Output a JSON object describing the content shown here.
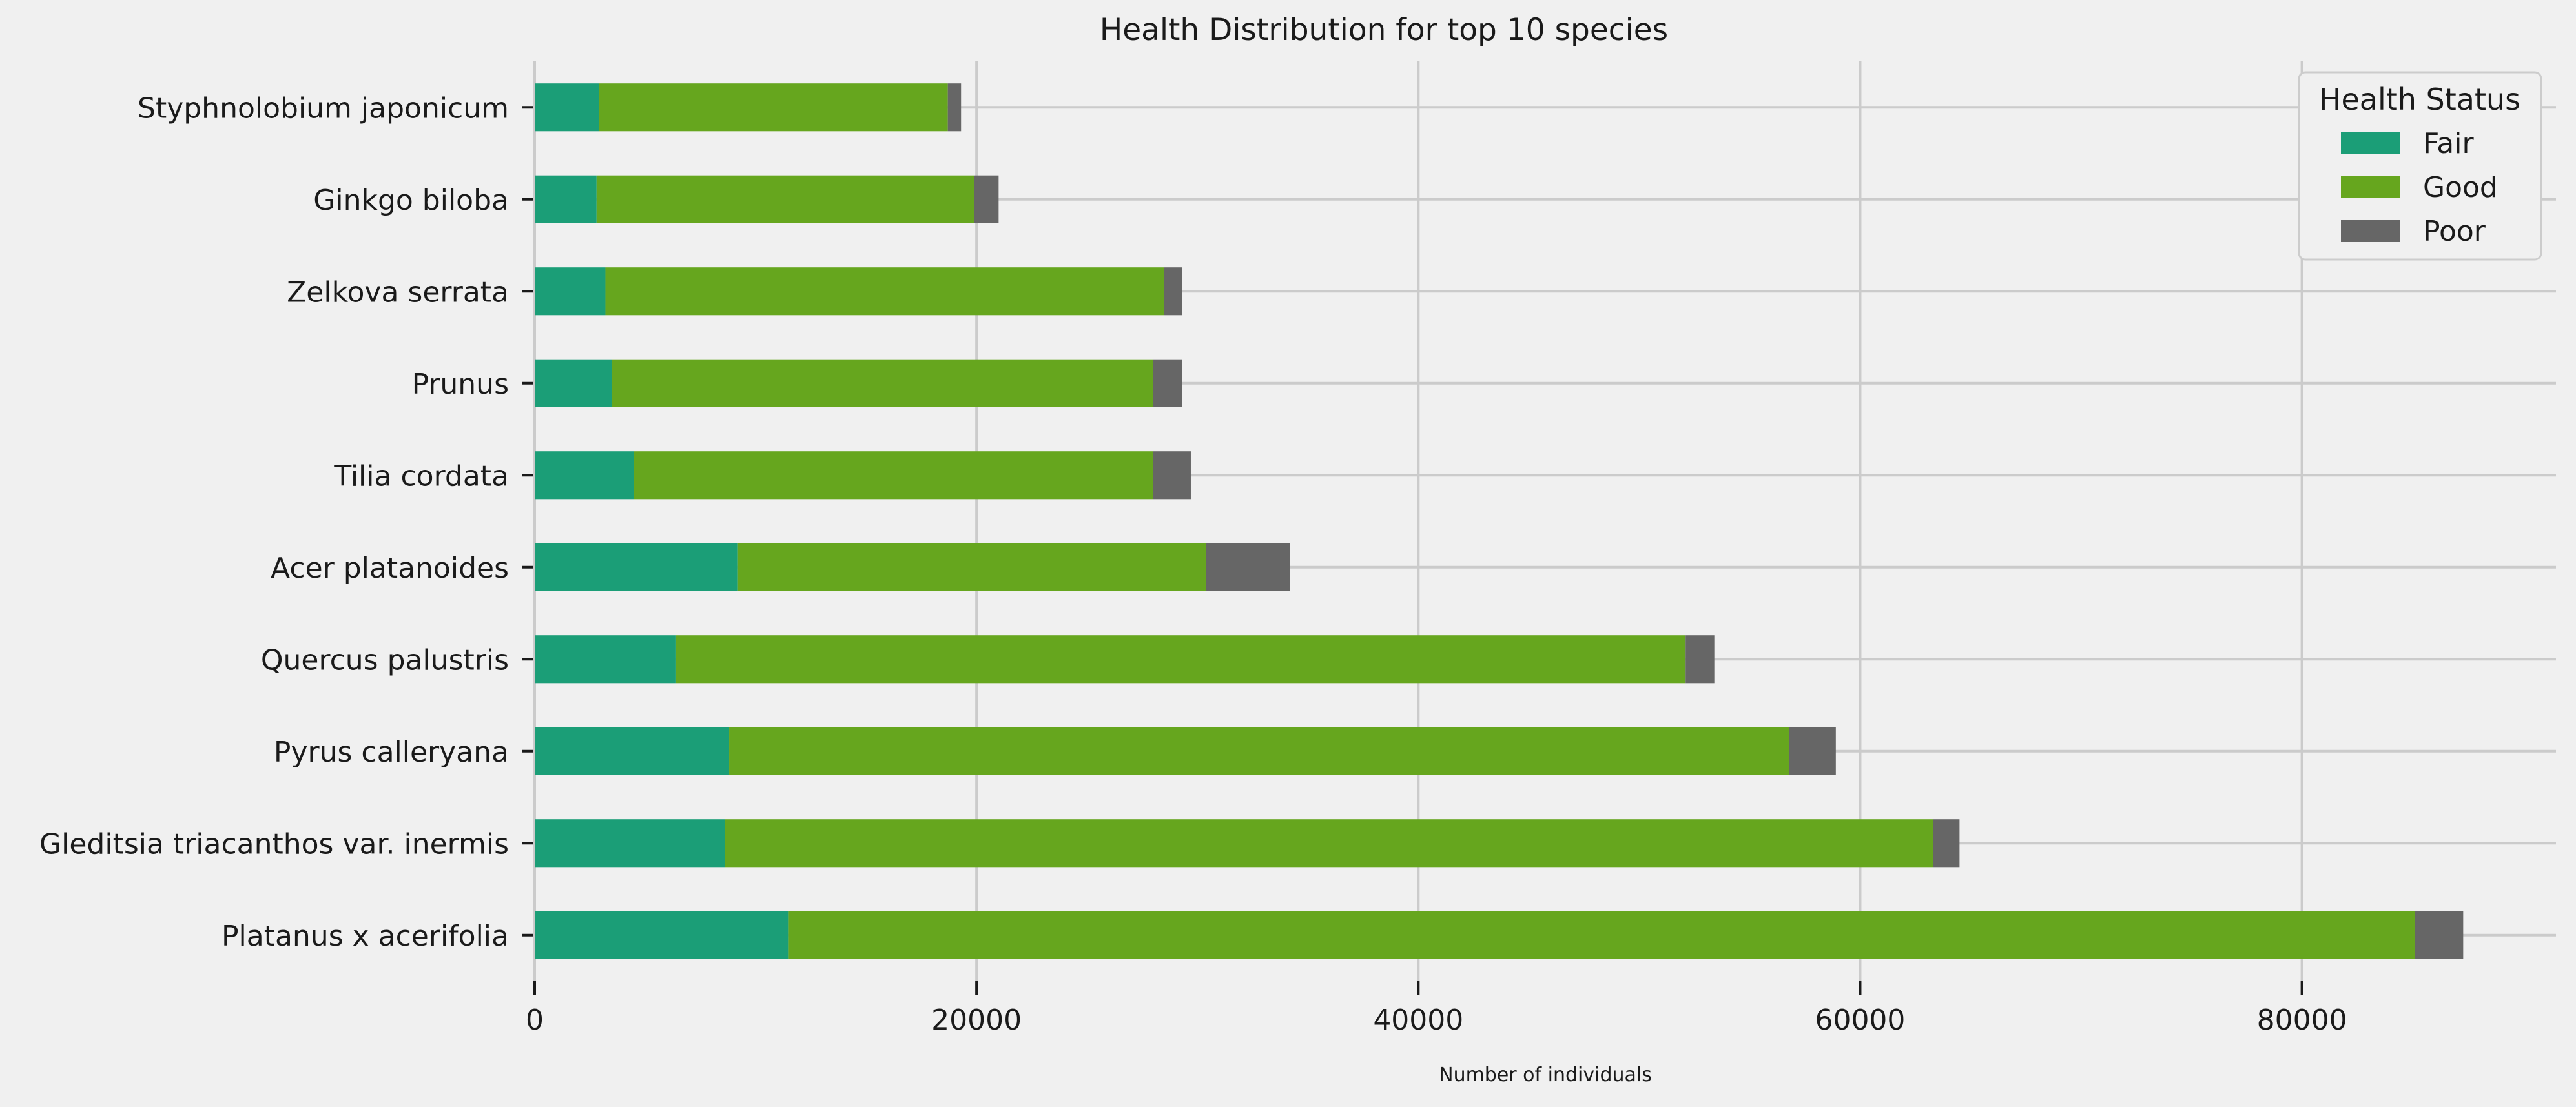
{
  "chart_data": {
    "type": "bar",
    "orientation": "horizontal",
    "stacked": true,
    "title": "Health Distribution for top 10 species",
    "xlabel": "Number of individuals",
    "ylabel": "",
    "xlim": [
      0,
      91500
    ],
    "xticks": [
      0,
      20000,
      40000,
      60000,
      80000
    ],
    "xtick_labels": [
      "0",
      "20000",
      "40000",
      "60000",
      "80000"
    ],
    "grid": true,
    "categories": [
      "Styphnolobium japonicum",
      "Ginkgo biloba",
      "Zelkova serrata",
      "Prunus",
      "Tilia cordata",
      "Acer platanoides",
      "Quercus palustris",
      "Pyrus calleryana",
      "Gleditsia triacanthos var. inermis",
      "Platanus x acerifolia"
    ],
    "series": [
      {
        "name": "Fair",
        "color": "#1b9e77",
        "values": [
          2900,
          2800,
          3200,
          3500,
          4500,
          9200,
          6400,
          8800,
          8600,
          11500
        ]
      },
      {
        "name": "Good",
        "color": "#66a61e",
        "values": [
          15800,
          17100,
          25300,
          24500,
          23500,
          21200,
          45700,
          48000,
          54700,
          73600
        ]
      },
      {
        "name": "Poor",
        "color": "#666666",
        "values": [
          600,
          1100,
          800,
          1300,
          1700,
          3800,
          1300,
          2100,
          1200,
          2200
        ]
      }
    ],
    "legend": {
      "title": "Health Status",
      "placement": "top-right"
    }
  }
}
